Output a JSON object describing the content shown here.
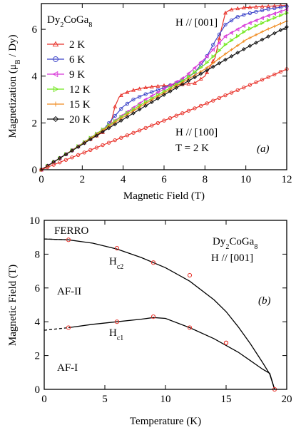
{
  "chart_data": [
    {
      "type": "line",
      "panel_label": "(a)",
      "title": "",
      "compound": {
        "base": "Dy",
        "sub1": "2",
        "mid": "CoGa",
        "sub2": "8"
      },
      "xlabel": "Magnetic Field (T)",
      "ylabel": {
        "main": "Magnetization (μ",
        "sub": "B",
        "tail": " / Dy)"
      },
      "xlim": [
        0,
        12
      ],
      "ylim": [
        0,
        7.1
      ],
      "xticks": [
        0,
        2,
        4,
        6,
        8,
        10,
        12
      ],
      "yticks": [
        0,
        2,
        4,
        6
      ],
      "legend_position": "upper-left",
      "annotations": {
        "field_dir_top": "H // [001]",
        "field_dir_bottom": "H // [100]",
        "temp_bottom": "T = 2 K"
      },
      "series": [
        {
          "name": "2 K",
          "color": "#e8322a",
          "marker": "triangle-up",
          "x": [
            0,
            1,
            2,
            3,
            3.4,
            3.6,
            3.8,
            4.0,
            4.5,
            5,
            6,
            7,
            7.5,
            8,
            8.5,
            8.8,
            9.0,
            9.2,
            9.5,
            10,
            11,
            12
          ],
          "y": [
            0,
            0.55,
            1.1,
            1.6,
            2.0,
            2.7,
            3.1,
            3.25,
            3.4,
            3.5,
            3.6,
            3.65,
            3.7,
            4.0,
            4.8,
            6.0,
            6.7,
            6.82,
            6.88,
            6.93,
            6.98,
            7.03
          ]
        },
        {
          "name": "6 K",
          "color": "#3a42c8",
          "marker": "circle",
          "x": [
            0,
            1,
            2,
            3,
            3.5,
            4,
            4.5,
            5,
            6,
            7,
            7.5,
            8,
            8.5,
            9,
            9.5,
            10,
            11,
            12
          ],
          "y": [
            0,
            0.55,
            1.1,
            1.68,
            2.2,
            2.7,
            3.0,
            3.2,
            3.5,
            3.85,
            4.15,
            4.7,
            5.5,
            6.2,
            6.5,
            6.65,
            6.85,
            6.98
          ]
        },
        {
          "name": "9 K",
          "color": "#d838d8",
          "marker": "triangle-left",
          "x": [
            0,
            1,
            2,
            3,
            4,
            5,
            6,
            7,
            8,
            9,
            10,
            11,
            12
          ],
          "y": [
            0,
            0.55,
            1.12,
            1.72,
            2.35,
            2.95,
            3.45,
            3.95,
            4.75,
            5.7,
            6.2,
            6.55,
            6.85
          ]
        },
        {
          "name": "12 K",
          "color": "#72e81e",
          "marker": "triangle-right",
          "x": [
            0,
            1,
            2,
            3,
            4,
            5,
            6,
            7,
            8,
            9,
            10,
            11,
            12
          ],
          "y": [
            0,
            0.55,
            1.12,
            1.72,
            2.32,
            2.85,
            3.35,
            3.85,
            4.5,
            5.35,
            5.95,
            6.35,
            6.7
          ]
        },
        {
          "name": "15 K",
          "color": "#f08a1e",
          "marker": "plus",
          "x": [
            0,
            1,
            2,
            3,
            4,
            5,
            6,
            7,
            8,
            9,
            10,
            11,
            12
          ],
          "y": [
            0,
            0.55,
            1.1,
            1.68,
            2.25,
            2.78,
            3.28,
            3.78,
            4.3,
            4.95,
            5.55,
            5.98,
            6.35
          ]
        },
        {
          "name": "20 K",
          "color": "#111111",
          "marker": "diamond",
          "x": [
            0,
            1,
            2,
            3,
            4,
            5,
            6,
            7,
            8,
            9,
            10,
            11,
            12
          ],
          "y": [
            0,
            0.55,
            1.08,
            1.62,
            2.15,
            2.68,
            3.2,
            3.7,
            4.2,
            4.7,
            5.2,
            5.65,
            6.1
          ]
        },
        {
          "name": "",
          "color": "#e8322a",
          "marker": "circle",
          "x": [
            0,
            1,
            2,
            3,
            4,
            5,
            6,
            7,
            8,
            9,
            10,
            11,
            12
          ],
          "y": [
            0,
            0.35,
            0.7,
            1.05,
            1.4,
            1.75,
            2.1,
            2.45,
            2.8,
            3.18,
            3.55,
            3.92,
            4.3
          ]
        }
      ]
    },
    {
      "type": "scatter",
      "panel_label": "(b)",
      "title": "",
      "compound": {
        "base": "Dy",
        "sub1": "2",
        "mid": "CoGa",
        "sub2": "8"
      },
      "field_dir": "H // [001]",
      "xlabel": "Temperature (K)",
      "ylabel": "Magnetic Field (T)",
      "xlim": [
        0,
        20
      ],
      "ylim": [
        0,
        10
      ],
      "xticks": [
        0,
        5,
        10,
        15,
        20
      ],
      "yticks": [
        0,
        2,
        4,
        6,
        8,
        10
      ],
      "phase_labels": [
        "FERRO",
        "AF-II",
        "AF-I"
      ],
      "hc2_label": {
        "main": "H",
        "sub": "c2"
      },
      "hc1_label": {
        "main": "H",
        "sub": "c1"
      },
      "points": {
        "color": "#e8322a",
        "x": [
          2,
          6,
          9,
          12,
          15,
          19,
          2,
          6,
          9,
          12,
          15
        ],
        "y": [
          8.85,
          8.35,
          7.5,
          6.75,
          2.75,
          0.0,
          3.65,
          4.0,
          4.3,
          3.65,
          2.75
        ]
      },
      "hc2_fit": {
        "x": [
          0,
          2,
          4,
          6,
          8,
          10,
          12,
          14,
          15,
          16,
          17,
          18,
          18.6,
          19
        ],
        "y": [
          8.9,
          8.85,
          8.65,
          8.3,
          7.8,
          7.2,
          6.4,
          5.3,
          4.6,
          3.7,
          2.7,
          1.6,
          0.9,
          0
        ]
      },
      "hc2_dashed": {
        "x": [
          0,
          2
        ],
        "y": [
          8.9,
          8.85
        ]
      },
      "hc1_fit": {
        "x": [
          2,
          4,
          6,
          8,
          9,
          10,
          12,
          14,
          15,
          16,
          17,
          18,
          18.6,
          19
        ],
        "y": [
          3.65,
          3.85,
          4.0,
          4.15,
          4.25,
          4.2,
          3.65,
          3.0,
          2.6,
          2.2,
          1.7,
          1.2,
          0.95,
          0
        ]
      },
      "hc1_dashed": {
        "x": [
          0,
          2
        ],
        "y": [
          3.5,
          3.65
        ]
      }
    }
  ]
}
